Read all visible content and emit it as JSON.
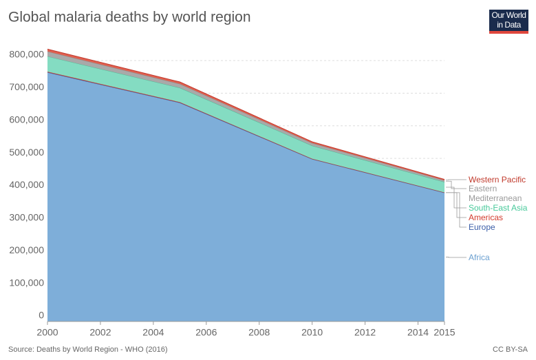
{
  "chart_data": {
    "type": "stacked-area",
    "title": "Global malaria deaths by world region",
    "logo": "Our World in Data",
    "source": "Source: Deaths by World Region - WHO (2016)",
    "license": "CC BY-SA",
    "x": [
      2000,
      2005,
      2010,
      2015
    ],
    "series": [
      {
        "name": "Africa",
        "color": "#7eaed9",
        "line": "#4f7aa6",
        "label_color": "#6a9fd0",
        "values": [
          764000,
          671000,
          498000,
          395000
        ]
      },
      {
        "name": "Europe",
        "color": "#3b5ea8",
        "line": "#3b5ea8",
        "label_color": "#3b5ea8",
        "values": [
          50,
          20,
          10,
          5
        ]
      },
      {
        "name": "Americas",
        "color": "#d94a3c",
        "line": "#c0392b",
        "label_color": "#d33a2c",
        "values": [
          2000,
          1500,
          1000,
          600
        ]
      },
      {
        "name": "South-East Asia",
        "color": "#84dcc2",
        "line": "#52b894",
        "label_color": "#47c99a",
        "values": [
          47000,
          44000,
          40000,
          32000
        ]
      },
      {
        "name": "Eastern Mediterranean",
        "color": "#a9a9a9",
        "line": "#8e8e8e",
        "label_color": "#999999",
        "values": [
          15000,
          12000,
          8000,
          5000
        ]
      },
      {
        "name": "Western Pacific",
        "color": "#e06050",
        "line": "#c0392b",
        "label_color": "#c0392b",
        "values": [
          7000,
          6000,
          4000,
          3000
        ]
      }
    ],
    "xlim": [
      2000,
      2015
    ],
    "xticks": [
      2000,
      2002,
      2004,
      2006,
      2008,
      2010,
      2012,
      2014,
      2015
    ],
    "ylim": [
      0,
      800000
    ],
    "yticks": [
      0,
      {
        "value": 100000,
        "label": "100,000"
      },
      {
        "value": 200000,
        "label": "200,000"
      },
      {
        "value": 300000,
        "label": "300,000"
      },
      {
        "value": 400000,
        "label": "400,000"
      },
      {
        "value": 500000,
        "label": "500,000"
      },
      {
        "value": 600000,
        "label": "600,000"
      },
      {
        "value": 700000,
        "label": "700,000"
      },
      {
        "value": 800000,
        "label": "800,000"
      }
    ],
    "grid": true
  }
}
